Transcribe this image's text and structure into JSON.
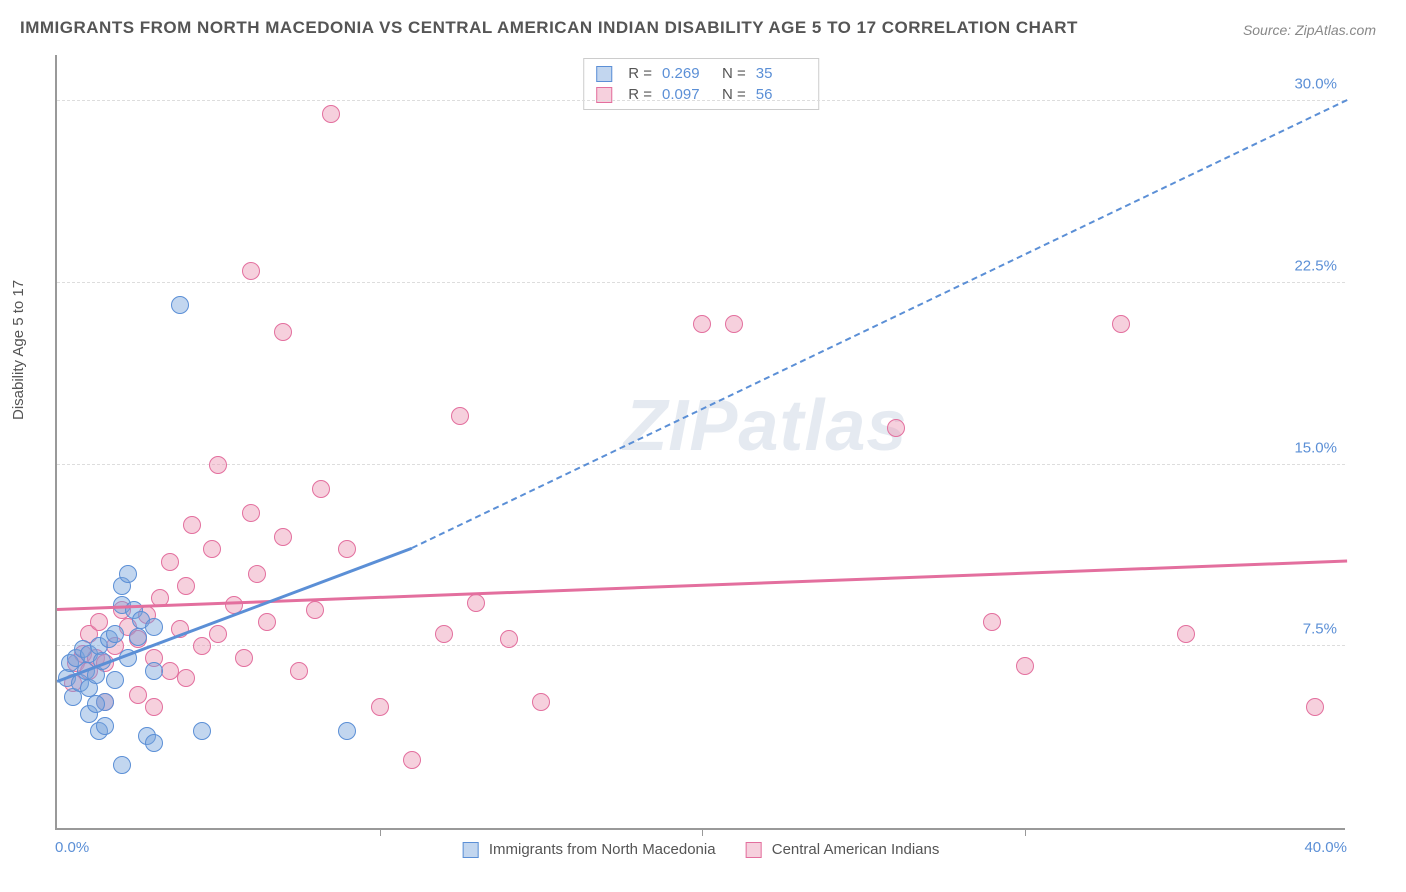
{
  "title": "IMMIGRANTS FROM NORTH MACEDONIA VS CENTRAL AMERICAN INDIAN DISABILITY AGE 5 TO 17 CORRELATION CHART",
  "source": "Source: ZipAtlas.com",
  "y_axis_label": "Disability Age 5 to 17",
  "watermark": "ZIPatlas",
  "chart": {
    "type": "scatter",
    "xlim": [
      0,
      40
    ],
    "ylim": [
      0,
      32
    ],
    "y_ticks": [
      {
        "value": 7.5,
        "label": "7.5%"
      },
      {
        "value": 15.0,
        "label": "15.0%"
      },
      {
        "value": 22.5,
        "label": "22.5%"
      },
      {
        "value": 30.0,
        "label": "30.0%"
      }
    ],
    "x_tick_left": {
      "value": 0,
      "label": "0.0%"
    },
    "x_tick_right": {
      "value": 40,
      "label": "40.0%"
    },
    "x_tick_marks": [
      10,
      20,
      30
    ],
    "grid_color": "#dddddd",
    "background_color": "#ffffff",
    "axis_color": "#999999"
  },
  "series": [
    {
      "name": "Immigrants from North Macedonia",
      "color_fill": "rgba(120, 165, 220, 0.45)",
      "color_stroke": "#5b8fd6",
      "r": 0.269,
      "n": 35,
      "points": [
        [
          0.3,
          6.2
        ],
        [
          0.4,
          6.8
        ],
        [
          0.5,
          5.4
        ],
        [
          0.6,
          7.0
        ],
        [
          0.7,
          6.0
        ],
        [
          0.8,
          7.4
        ],
        [
          0.9,
          6.5
        ],
        [
          1.0,
          5.8
        ],
        [
          1.0,
          7.2
        ],
        [
          1.2,
          6.3
        ],
        [
          1.3,
          7.5
        ],
        [
          1.4,
          6.9
        ],
        [
          1.5,
          5.2
        ],
        [
          1.6,
          7.8
        ],
        [
          1.8,
          6.1
        ],
        [
          1.8,
          8.0
        ],
        [
          2.0,
          9.2
        ],
        [
          2.0,
          10.0
        ],
        [
          2.2,
          10.5
        ],
        [
          2.4,
          9.0
        ],
        [
          2.5,
          7.9
        ],
        [
          2.6,
          8.6
        ],
        [
          2.8,
          3.8
        ],
        [
          3.0,
          3.5
        ],
        [
          3.0,
          6.5
        ],
        [
          3.0,
          8.3
        ],
        [
          1.3,
          4.0
        ],
        [
          1.5,
          4.2
        ],
        [
          2.0,
          2.6
        ],
        [
          4.5,
          4.0
        ],
        [
          3.8,
          21.6
        ],
        [
          1.0,
          4.7
        ],
        [
          1.2,
          5.1
        ],
        [
          9.0,
          4.0
        ],
        [
          2.2,
          7.0
        ]
      ],
      "trend": {
        "x1": 0,
        "y1": 6.0,
        "x2": 11,
        "y2": 11.5,
        "x2_ext": 40,
        "y2_ext": 30.0
      }
    },
    {
      "name": "Central American Indians",
      "color_fill": "rgba(235, 150, 180, 0.45)",
      "color_stroke": "#e36f9e",
      "r": 0.097,
      "n": 56,
      "points": [
        [
          0.5,
          6.0
        ],
        [
          0.6,
          6.8
        ],
        [
          0.8,
          7.2
        ],
        [
          1.0,
          6.5
        ],
        [
          1.0,
          8.0
        ],
        [
          1.2,
          7.0
        ],
        [
          1.3,
          8.5
        ],
        [
          1.5,
          6.8
        ],
        [
          1.8,
          7.5
        ],
        [
          2.0,
          9.0
        ],
        [
          2.2,
          8.3
        ],
        [
          2.5,
          7.8
        ],
        [
          2.8,
          8.8
        ],
        [
          3.0,
          7.0
        ],
        [
          3.2,
          9.5
        ],
        [
          3.5,
          6.5
        ],
        [
          3.5,
          11.0
        ],
        [
          3.8,
          8.2
        ],
        [
          4.0,
          10.0
        ],
        [
          4.2,
          12.5
        ],
        [
          4.5,
          7.5
        ],
        [
          4.8,
          11.5
        ],
        [
          5.0,
          8.0
        ],
        [
          5.0,
          15.0
        ],
        [
          5.5,
          9.2
        ],
        [
          5.8,
          7.0
        ],
        [
          6.0,
          13.0
        ],
        [
          6.0,
          23.0
        ],
        [
          6.2,
          10.5
        ],
        [
          6.5,
          8.5
        ],
        [
          7.0,
          12.0
        ],
        [
          7.0,
          20.5
        ],
        [
          7.5,
          6.5
        ],
        [
          8.0,
          9.0
        ],
        [
          8.2,
          14.0
        ],
        [
          9.0,
          11.5
        ],
        [
          8.5,
          29.5
        ],
        [
          10.0,
          5.0
        ],
        [
          11.0,
          2.8
        ],
        [
          12.0,
          8.0
        ],
        [
          12.5,
          17.0
        ],
        [
          13.0,
          9.3
        ],
        [
          14.0,
          7.8
        ],
        [
          15.0,
          5.2
        ],
        [
          20.0,
          20.8
        ],
        [
          21.0,
          20.8
        ],
        [
          26.0,
          16.5
        ],
        [
          29.0,
          8.5
        ],
        [
          30.0,
          6.7
        ],
        [
          33.0,
          20.8
        ],
        [
          35.0,
          8.0
        ],
        [
          39.0,
          5.0
        ],
        [
          4.0,
          6.2
        ],
        [
          3.0,
          5.0
        ],
        [
          2.5,
          5.5
        ],
        [
          1.5,
          5.2
        ]
      ],
      "trend": {
        "x1": 0,
        "y1": 9.0,
        "x2": 40,
        "y2": 11.0
      }
    }
  ],
  "marker_radius": 9,
  "legend_swatch_size": 16
}
